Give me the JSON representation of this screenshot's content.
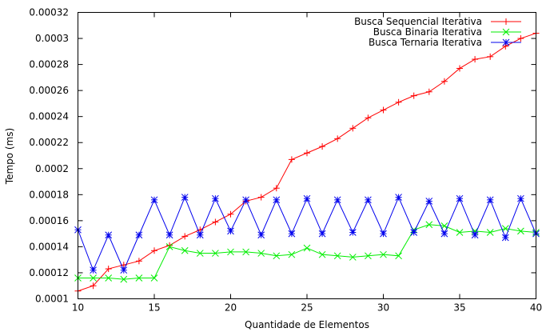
{
  "chart_data": {
    "type": "line",
    "xlabel": "Quantidade de Elementos",
    "ylabel": "Tempo (ms)",
    "xlim": [
      10,
      40
    ],
    "ylim": [
      0.0001,
      0.00032
    ],
    "xticks": [
      "10",
      "15",
      "20",
      "25",
      "30",
      "35",
      "40"
    ],
    "yticks": [
      "0.0001",
      "0.00012",
      "0.00014",
      "0.00016",
      "0.00018",
      "0.0002",
      "0.00022",
      "0.00024",
      "0.00026",
      "0.00028",
      "0.0003",
      "0.00032"
    ],
    "grid": false,
    "legend_position": "top-right",
    "x": [
      10,
      11,
      12,
      13,
      14,
      15,
      16,
      17,
      18,
      19,
      20,
      21,
      22,
      23,
      24,
      25,
      26,
      27,
      28,
      29,
      30,
      31,
      32,
      33,
      34,
      35,
      36,
      37,
      38,
      39,
      40
    ],
    "series": [
      {
        "name": "Busca Sequencial Iterativa",
        "color": "#ff0000",
        "marker": "plus",
        "values": [
          0.000106,
          0.00011,
          0.000123,
          0.000126,
          0.000129,
          0.000137,
          0.000141,
          0.000148,
          0.000153,
          0.000159,
          0.000165,
          0.000175,
          0.000178,
          0.000185,
          0.000207,
          0.000212,
          0.000217,
          0.000223,
          0.000231,
          0.000239,
          0.000245,
          0.000251,
          0.000256,
          0.000259,
          0.000267,
          0.000277,
          0.000284,
          0.000286,
          0.000294,
          0.0003,
          0.000304
        ]
      },
      {
        "name": "Busca Binaria Iterativa",
        "color": "#00ee00",
        "marker": "cross",
        "values": [
          0.000116,
          0.000116,
          0.000116,
          0.000115,
          0.000116,
          0.000116,
          0.00014,
          0.000137,
          0.000135,
          0.000135,
          0.000136,
          0.000136,
          0.000135,
          0.000133,
          0.000134,
          0.000139,
          0.000134,
          0.000133,
          0.000132,
          0.000133,
          0.000134,
          0.000133,
          0.000153,
          0.000157,
          0.000156,
          0.000151,
          0.000152,
          0.000151,
          0.000154,
          0.000152,
          0.000151
        ]
      },
      {
        "name": "Busca Ternaria Iterativa",
        "color": "#0000ee",
        "marker": "star",
        "values": [
          0.000153,
          0.000122,
          0.000149,
          0.000122,
          0.000149,
          0.000176,
          0.000149,
          0.000178,
          0.000149,
          0.000177,
          0.000152,
          0.000176,
          0.000149,
          0.000176,
          0.00015,
          0.000177,
          0.00015,
          0.000176,
          0.000151,
          0.000176,
          0.00015,
          0.000178,
          0.000151,
          0.000175,
          0.00015,
          0.000177,
          0.000149,
          0.000176,
          0.000147,
          0.000177,
          0.00015
        ]
      }
    ]
  }
}
